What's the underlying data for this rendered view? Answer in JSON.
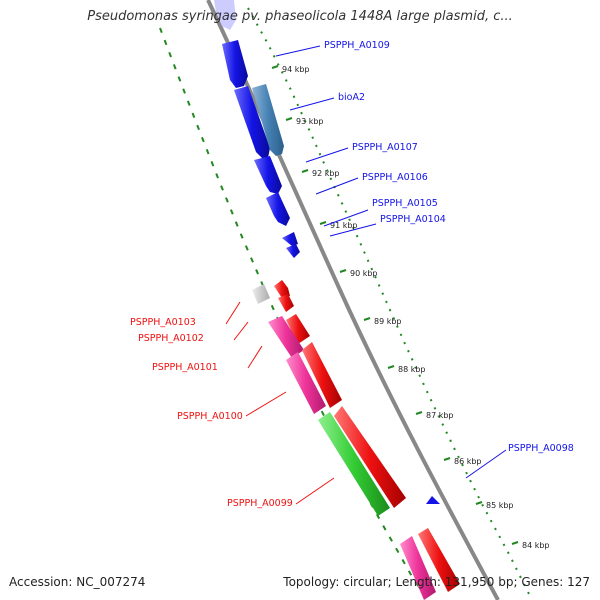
{
  "title": "Pseudomonas syringae pv. phaseolicola 1448A large plasmid, c...",
  "accession": "Accession: NC_007274",
  "topology": "Topology: circular; Length: 131,950 bp; Genes: 127",
  "colors": {
    "forward": "#1414e6",
    "forward_light": "#4682b4",
    "reverse": "#ee1111",
    "reverse_pink": "#ee3399",
    "reverse_green": "#33cc33",
    "other": "#c8c8c8",
    "ring": "#888888",
    "gc_ticks": "#228822"
  },
  "ticks": [
    "94 kbp",
    "93 kbp",
    "92 kbp",
    "91 kbp",
    "90 kbp",
    "89 kbp",
    "88 kbp",
    "87 kbp",
    "86 kbp",
    "85 kbp",
    "84 kbp"
  ],
  "labels_forward": [
    "PSPPH_A0109",
    "bioA2",
    "PSPPH_A0107",
    "PSPPH_A0106",
    "PSPPH_A0105",
    "PSPPH_A0104",
    "PSPPH_A0098"
  ],
  "labels_reverse": [
    "PSPPH_A0103",
    "PSPPH_A0102",
    "PSPPH_A0101",
    "PSPPH_A0100",
    "PSPPH_A0099"
  ]
}
